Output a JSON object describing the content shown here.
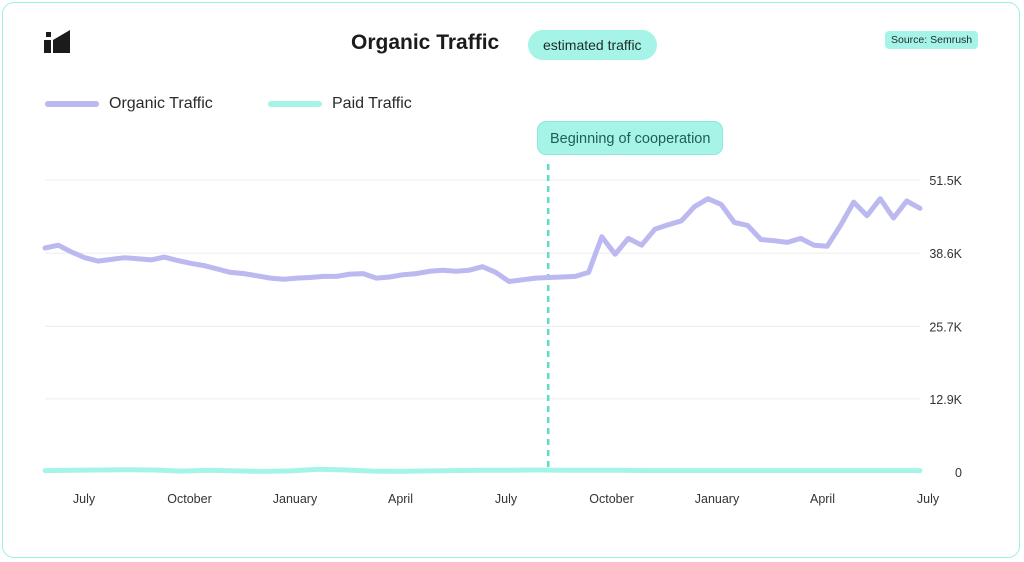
{
  "header": {
    "title": "Organic Traffic",
    "badge": "estimated traffic",
    "source": "Source: Semrush"
  },
  "annotation": {
    "label": "Beginning of cooperation"
  },
  "colors": {
    "organic": "#bcb8f0",
    "paid": "#a6f4e7",
    "accent": "#5fdcc8",
    "grid": "#ececec"
  },
  "icons": {
    "logo": "brand-logo-icon"
  },
  "chart_data": {
    "type": "line",
    "title": "Organic Traffic",
    "grid": true,
    "legend_position": "top-left",
    "ylim": [
      0,
      51500
    ],
    "y_ticks": [
      {
        "value": 51500,
        "label": "51.5K"
      },
      {
        "value": 38600,
        "label": "38.6K"
      },
      {
        "value": 25700,
        "label": "25.7K"
      },
      {
        "value": 12900,
        "label": "12.9K"
      },
      {
        "value": 0,
        "label": "0"
      }
    ],
    "x_ticks": [
      "July",
      "October",
      "January",
      "April",
      "July",
      "October",
      "January",
      "April",
      "July"
    ],
    "annotation_at_tick_fraction": 4.4,
    "series": [
      {
        "name": "Organic Traffic",
        "values": [
          39500,
          40000,
          38800,
          37800,
          37200,
          37500,
          37800,
          37600,
          37400,
          37900,
          37300,
          36800,
          36400,
          35800,
          35200,
          35000,
          34600,
          34200,
          34000,
          34200,
          34300,
          34500,
          34500,
          34900,
          35000,
          34200,
          34400,
          34800,
          35000,
          35400,
          35600,
          35400,
          35600,
          36200,
          35200,
          33600,
          33900,
          34200,
          34300,
          34400,
          34500,
          35200,
          41500,
          38400,
          41200,
          40000,
          42800,
          43600,
          44300,
          46800,
          48200,
          47200,
          44000,
          43500,
          41000,
          40800,
          40500,
          41200,
          40000,
          39800,
          43500,
          47600,
          45200,
          48200,
          44800,
          47800,
          46500
        ]
      },
      {
        "name": "Paid Traffic",
        "values": [
          250,
          300,
          350,
          400,
          350,
          150,
          300,
          200,
          100,
          200,
          500,
          350,
          150,
          100,
          200,
          250,
          300,
          300,
          350,
          300,
          300,
          300,
          250,
          250,
          250,
          250,
          250,
          250,
          250,
          250,
          250,
          250,
          250
        ]
      }
    ]
  }
}
